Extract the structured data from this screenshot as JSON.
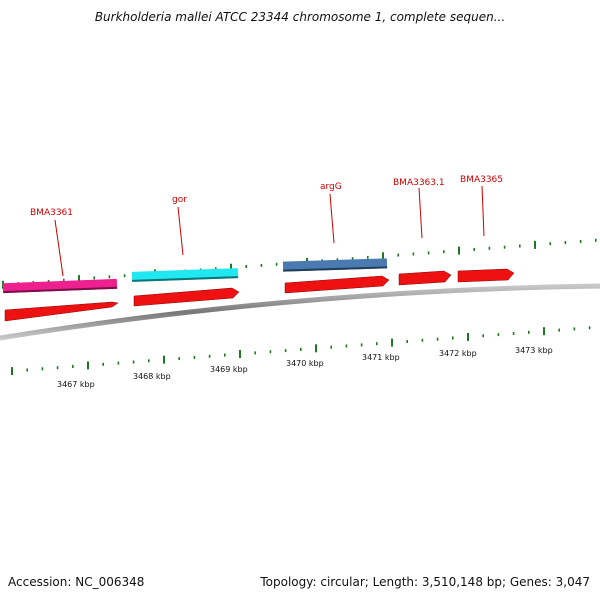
{
  "header": {
    "title": "Burkholderia mallei ATCC 23344 chromosome 1, complete sequen..."
  },
  "footer": {
    "accession": "Accession: NC_006348",
    "summary": "Topology: circular; Length: 3,510,148 bp; Genes: 3,047"
  },
  "colors": {
    "backbone": "#8a8a8a",
    "tick": "#1f7a1f",
    "cds": "#ee1111",
    "label": "#cc0000",
    "feature_magenta": "#ee1f8e",
    "feature_cyan": "#1fe8f0",
    "feature_steelblue": "#4a7ab0"
  },
  "scale_ticks": [
    {
      "label": "3467 kbp",
      "kbp": 3467
    },
    {
      "label": "3468 kbp",
      "kbp": 3468
    },
    {
      "label": "3469 kbp",
      "kbp": 3469
    },
    {
      "label": "3470 kbp",
      "kbp": 3470
    },
    {
      "label": "3471 kbp",
      "kbp": 3471
    },
    {
      "label": "3472 kbp",
      "kbp": 3472
    },
    {
      "label": "3473 kbp",
      "kbp": 3473
    }
  ],
  "genes": [
    {
      "label": "BMA3361",
      "kind": "gene",
      "color": "feature_magenta",
      "labeled": true
    },
    {
      "label": "gor",
      "kind": "gene",
      "color": "feature_cyan",
      "labeled": true
    },
    {
      "label": "argG",
      "kind": "gene",
      "color": "feature_steelblue",
      "labeled": true
    },
    {
      "label": "BMA3363.1",
      "kind": "cds",
      "color": "cds",
      "labeled": true
    },
    {
      "label": "BMA3365",
      "kind": "cds",
      "color": "cds",
      "labeled": true
    }
  ]
}
